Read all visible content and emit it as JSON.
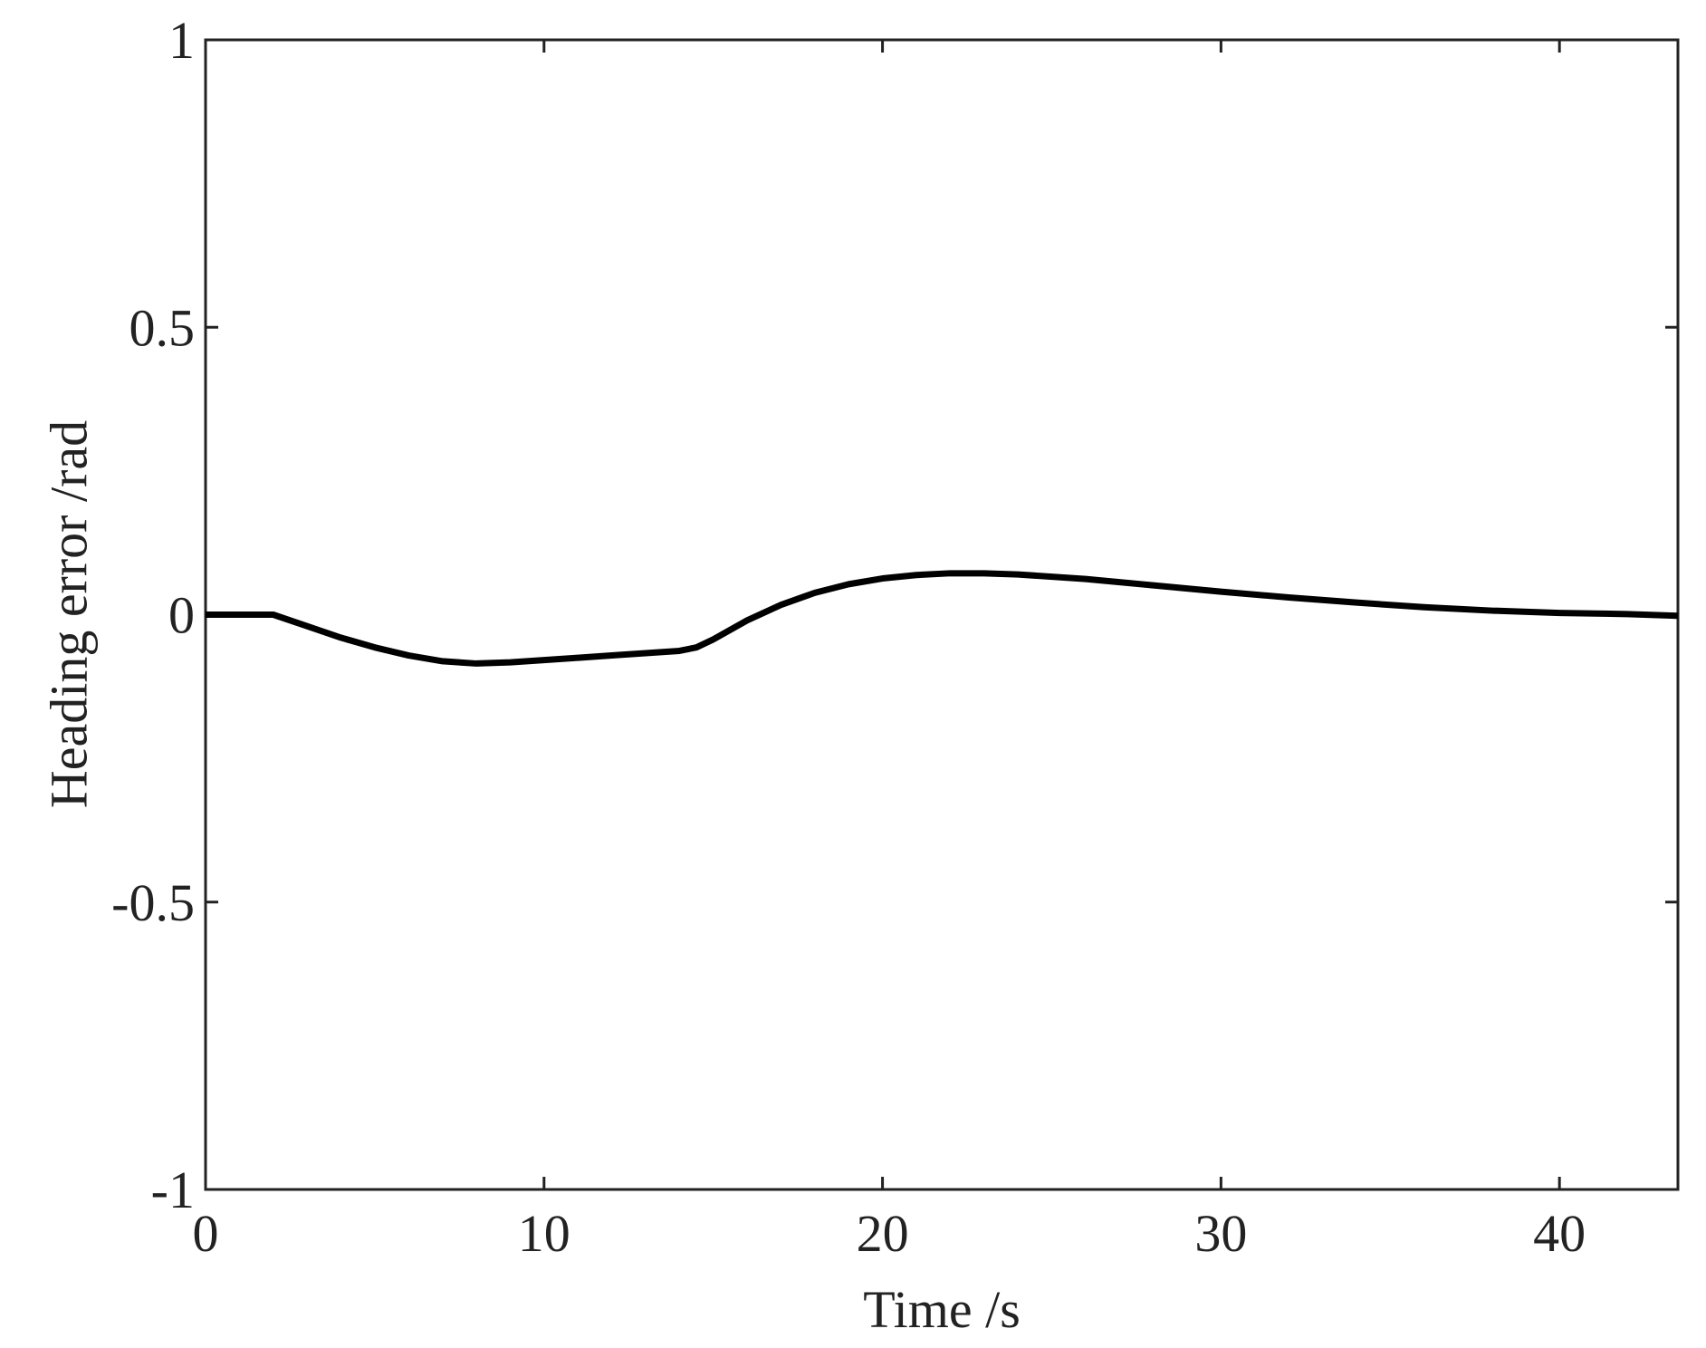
{
  "chart_data": {
    "type": "line",
    "x_label": "Time /s",
    "y_label": "Heading error /rad",
    "x": [
      0,
      2,
      3,
      4,
      5,
      6,
      7,
      8,
      9,
      10,
      11,
      12,
      13,
      14,
      14.5,
      15,
      16,
      17,
      18,
      19,
      20,
      21,
      22,
      23,
      24,
      26,
      28,
      30,
      32,
      34,
      36,
      38,
      40,
      42,
      43.5
    ],
    "series": [
      {
        "color": "#000000",
        "values": [
          0,
          0,
          -0.02,
          -0.04,
          -0.057,
          -0.071,
          -0.081,
          -0.085,
          -0.083,
          -0.079,
          -0.075,
          -0.071,
          -0.067,
          -0.063,
          -0.057,
          -0.043,
          -0.01,
          0.017,
          0.038,
          0.053,
          0.063,
          0.069,
          0.072,
          0.072,
          0.07,
          0.062,
          0.051,
          0.04,
          0.03,
          0.021,
          0.013,
          0.007,
          0.003,
          0.001,
          -0.002
        ]
      }
    ],
    "xlim": [
      0,
      43.5
    ],
    "xticks": [
      0,
      10,
      20,
      30,
      40
    ],
    "ylim": [
      -1,
      1
    ],
    "yticks": [
      -1,
      -0.5,
      0,
      0.5,
      1
    ],
    "grid": false
  }
}
